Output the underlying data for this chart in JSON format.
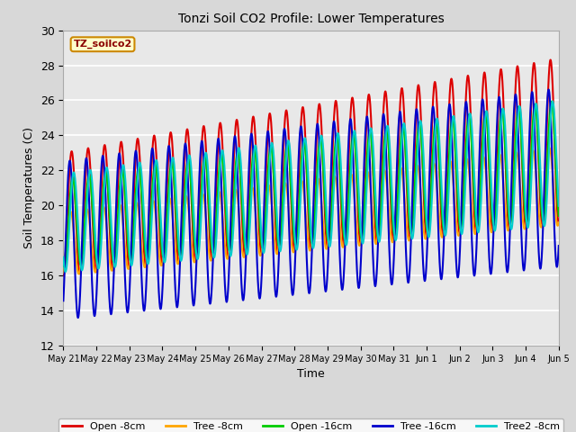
{
  "title": "Tonzi Soil CO2 Profile: Lower Temperatures",
  "xlabel": "Time",
  "ylabel": "Soil Temperatures (C)",
  "ylim": [
    12,
    30
  ],
  "yticks": [
    12,
    14,
    16,
    18,
    20,
    22,
    24,
    26,
    28,
    30
  ],
  "xtick_labels": [
    "May 21",
    "May 22",
    "May 23",
    "May 24",
    "May 25",
    "May 26",
    "May 27",
    "May 28",
    "May 29",
    "May 30",
    "May 31",
    "Jun 1",
    "Jun 2",
    "Jun 3",
    "Jun 4",
    "Jun 5"
  ],
  "series": {
    "Open -8cm": {
      "color": "#dd0000",
      "lw": 1.5
    },
    "Tree -8cm": {
      "color": "#ffa500",
      "lw": 1.5
    },
    "Open -16cm": {
      "color": "#00cc00",
      "lw": 1.5
    },
    "Tree -16cm": {
      "color": "#0000cc",
      "lw": 1.5
    },
    "Tree2 -8cm": {
      "color": "#00cccc",
      "lw": 1.5
    }
  },
  "annotation_text": "TZ_soilco2",
  "annotation_color": "#8b0000",
  "annotation_bg": "#ffffcc",
  "annotation_border": "#cc8800",
  "n_days": 15,
  "start_day": 21
}
